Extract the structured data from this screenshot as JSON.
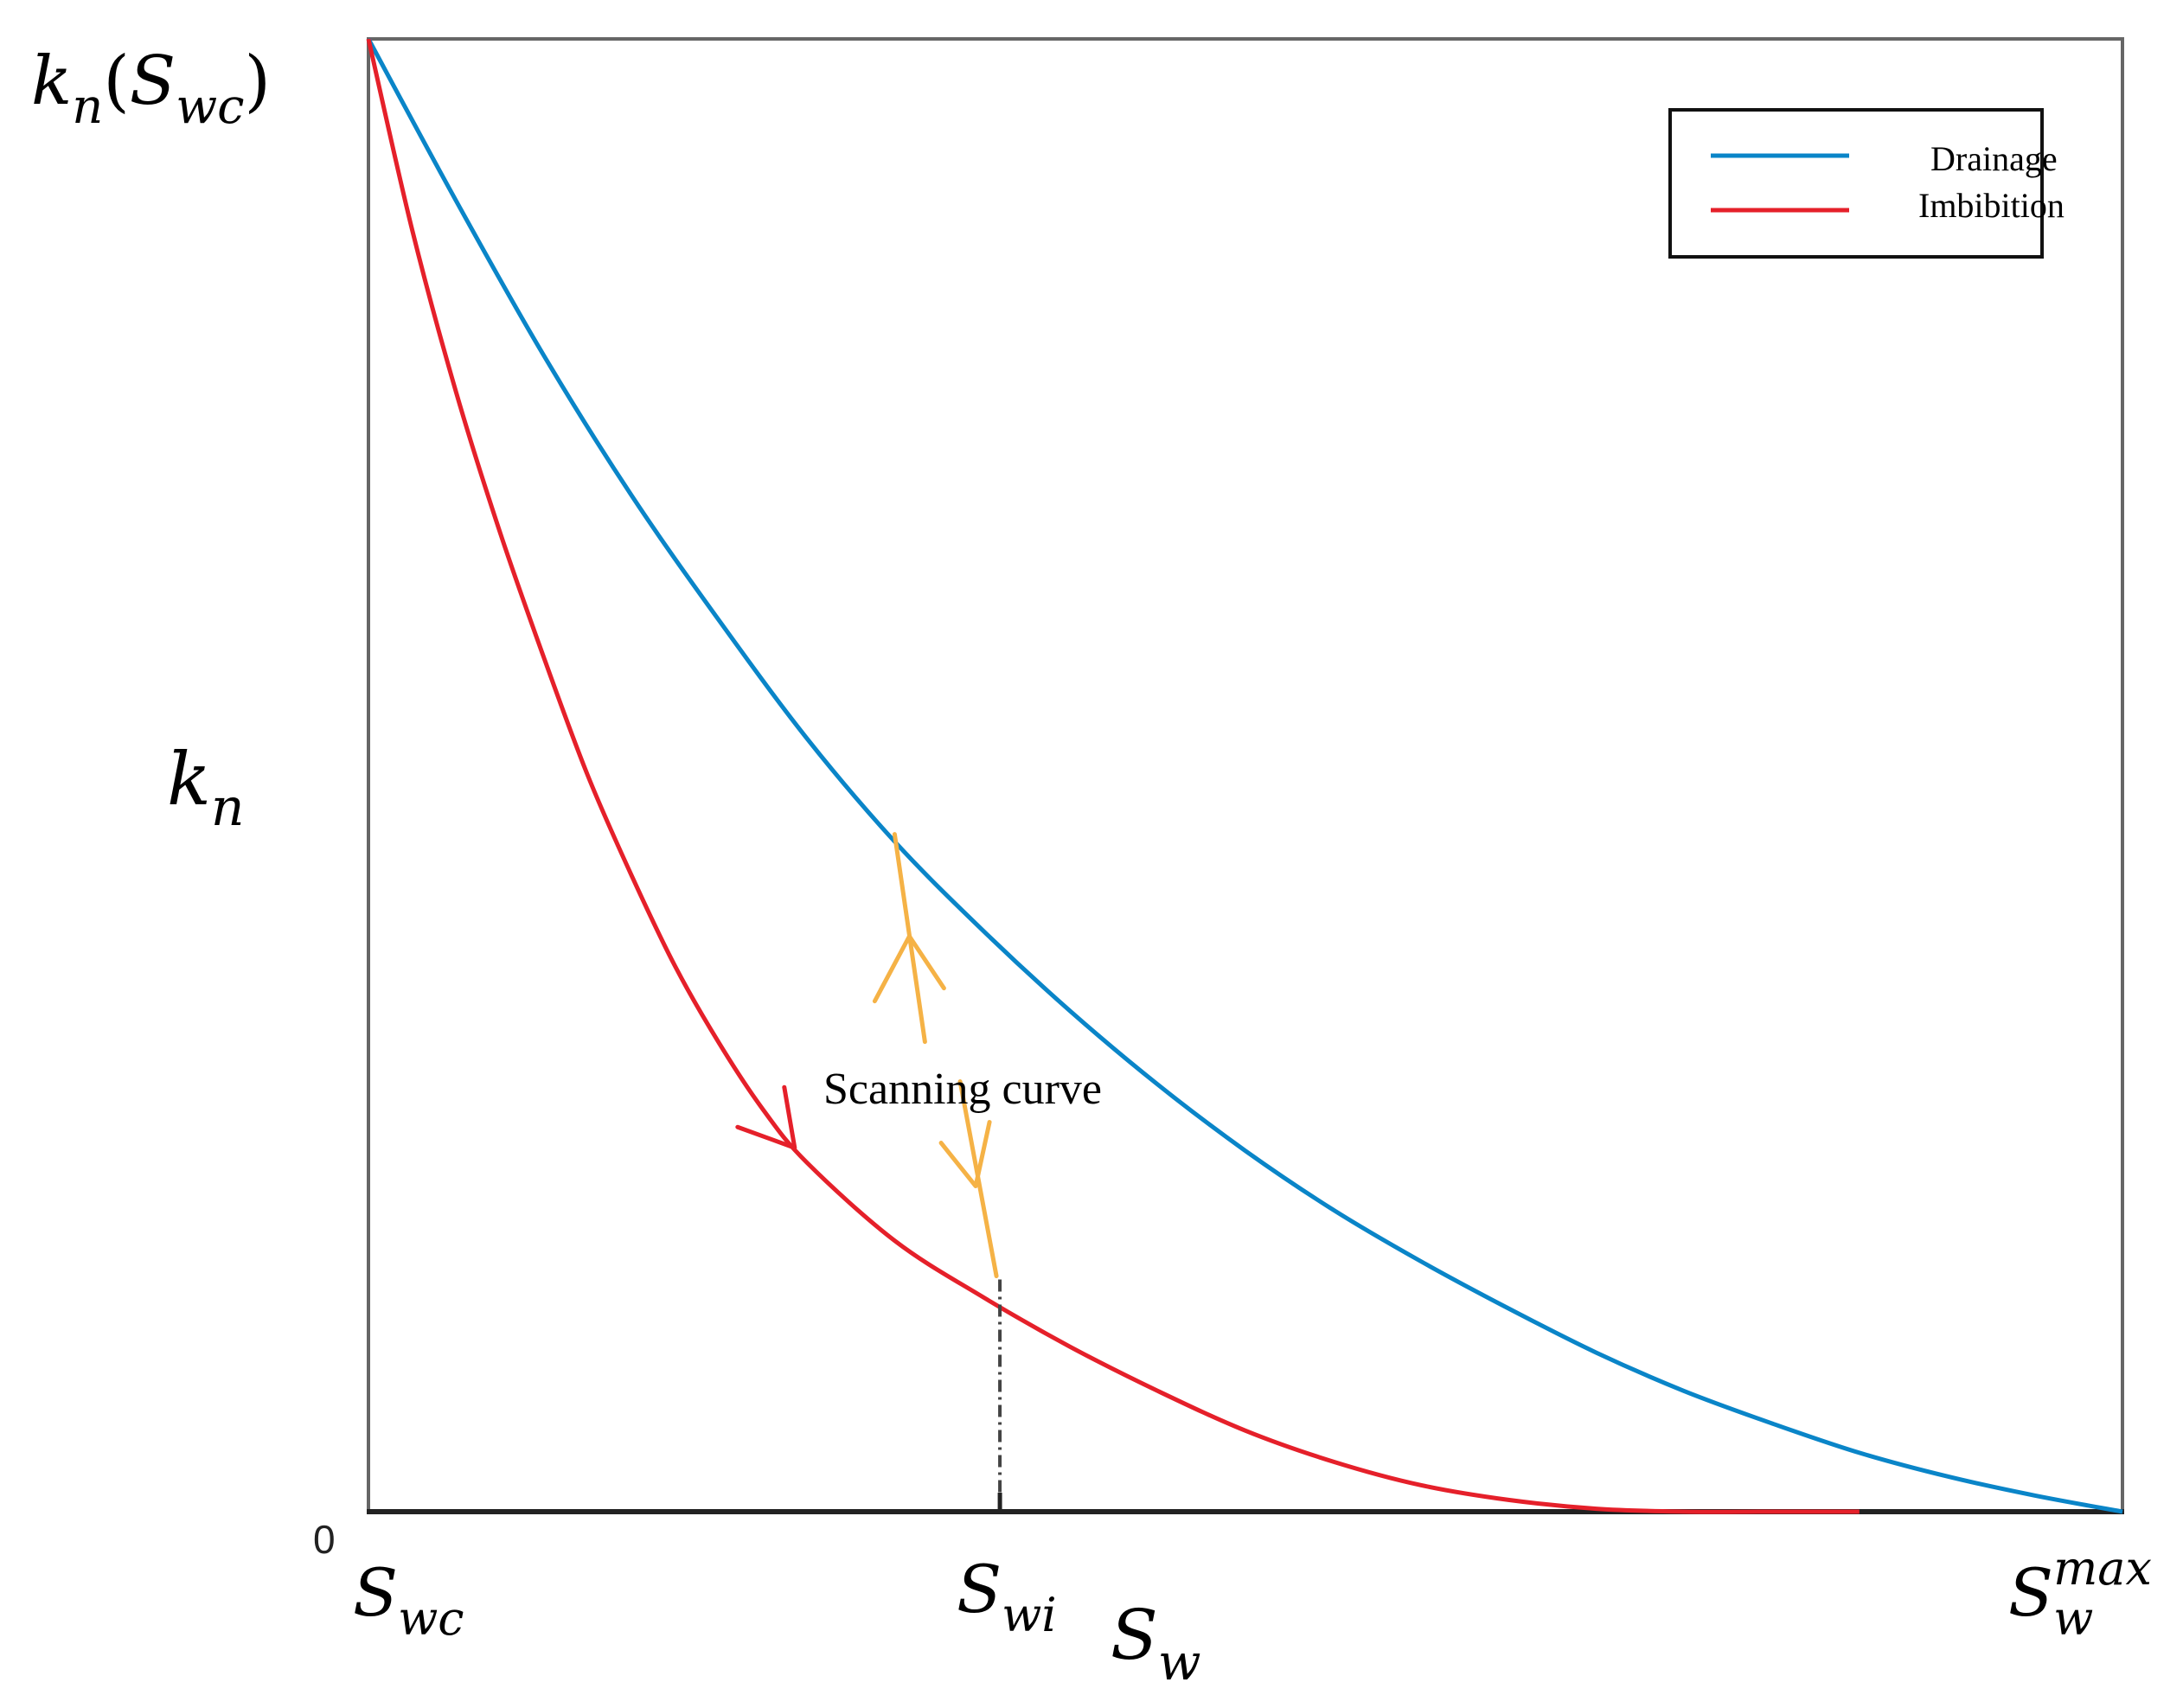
{
  "chart_data": {
    "type": "line",
    "xlabel": {
      "base": "S",
      "sub": "w"
    },
    "ylabel": {
      "base": "k",
      "sub": "n"
    },
    "ytop_label": {
      "k": "k",
      "ksub": "n",
      "open": "(",
      "s": "S",
      "ssub": "wc",
      "close": ")"
    },
    "xlim": [
      0,
      1
    ],
    "ylim": [
      0,
      1
    ],
    "origin_label": "0",
    "x_ticks": [
      {
        "x": 0.0,
        "base": "S",
        "sub": "wc",
        "sup": ""
      },
      {
        "x": 0.36,
        "base": "S",
        "sub": "wi",
        "sup": ""
      },
      {
        "x": 1.0,
        "base": "S",
        "sub": "w",
        "sup": "max"
      }
    ],
    "series": [
      {
        "name": "Drainage",
        "color": "#0a85c8",
        "x": [
          0,
          0.05,
          0.1,
          0.15,
          0.2,
          0.25,
          0.3,
          0.35,
          0.4,
          0.45,
          0.5,
          0.55,
          0.6,
          0.65,
          0.7,
          0.75,
          0.8,
          0.85,
          0.9,
          0.95,
          1.0
        ],
        "y": [
          1.0,
          0.89,
          0.785,
          0.69,
          0.605,
          0.525,
          0.455,
          0.395,
          0.34,
          0.29,
          0.245,
          0.205,
          0.17,
          0.138,
          0.108,
          0.082,
          0.06,
          0.04,
          0.024,
          0.011,
          0.0
        ]
      },
      {
        "name": "Imbibition",
        "color": "#e5202a",
        "x": [
          0,
          0.025,
          0.05,
          0.075,
          0.1,
          0.125,
          0.15,
          0.175,
          0.2,
          0.225,
          0.25,
          0.3,
          0.35,
          0.4,
          0.45,
          0.5,
          0.55,
          0.6,
          0.65,
          0.7,
          0.75,
          0.8,
          0.85
        ],
        "y": [
          1.0,
          0.87,
          0.76,
          0.665,
          0.58,
          0.5,
          0.432,
          0.37,
          0.318,
          0.273,
          0.237,
          0.184,
          0.146,
          0.112,
          0.082,
          0.055,
          0.034,
          0.018,
          0.008,
          0.002,
          0.0,
          0.0,
          0.0
        ]
      }
    ],
    "legend": {
      "position": "top-right"
    },
    "grid": false,
    "annotations": {
      "scanning_label": "Scanning curve",
      "scanning_color": "#f5b246",
      "swi_marker_x": 0.36,
      "scanning_upper": {
        "x": 0.3,
        "y": 0.46
      },
      "scanning_lower": {
        "x": 0.36,
        "y": 0.16
      }
    }
  }
}
